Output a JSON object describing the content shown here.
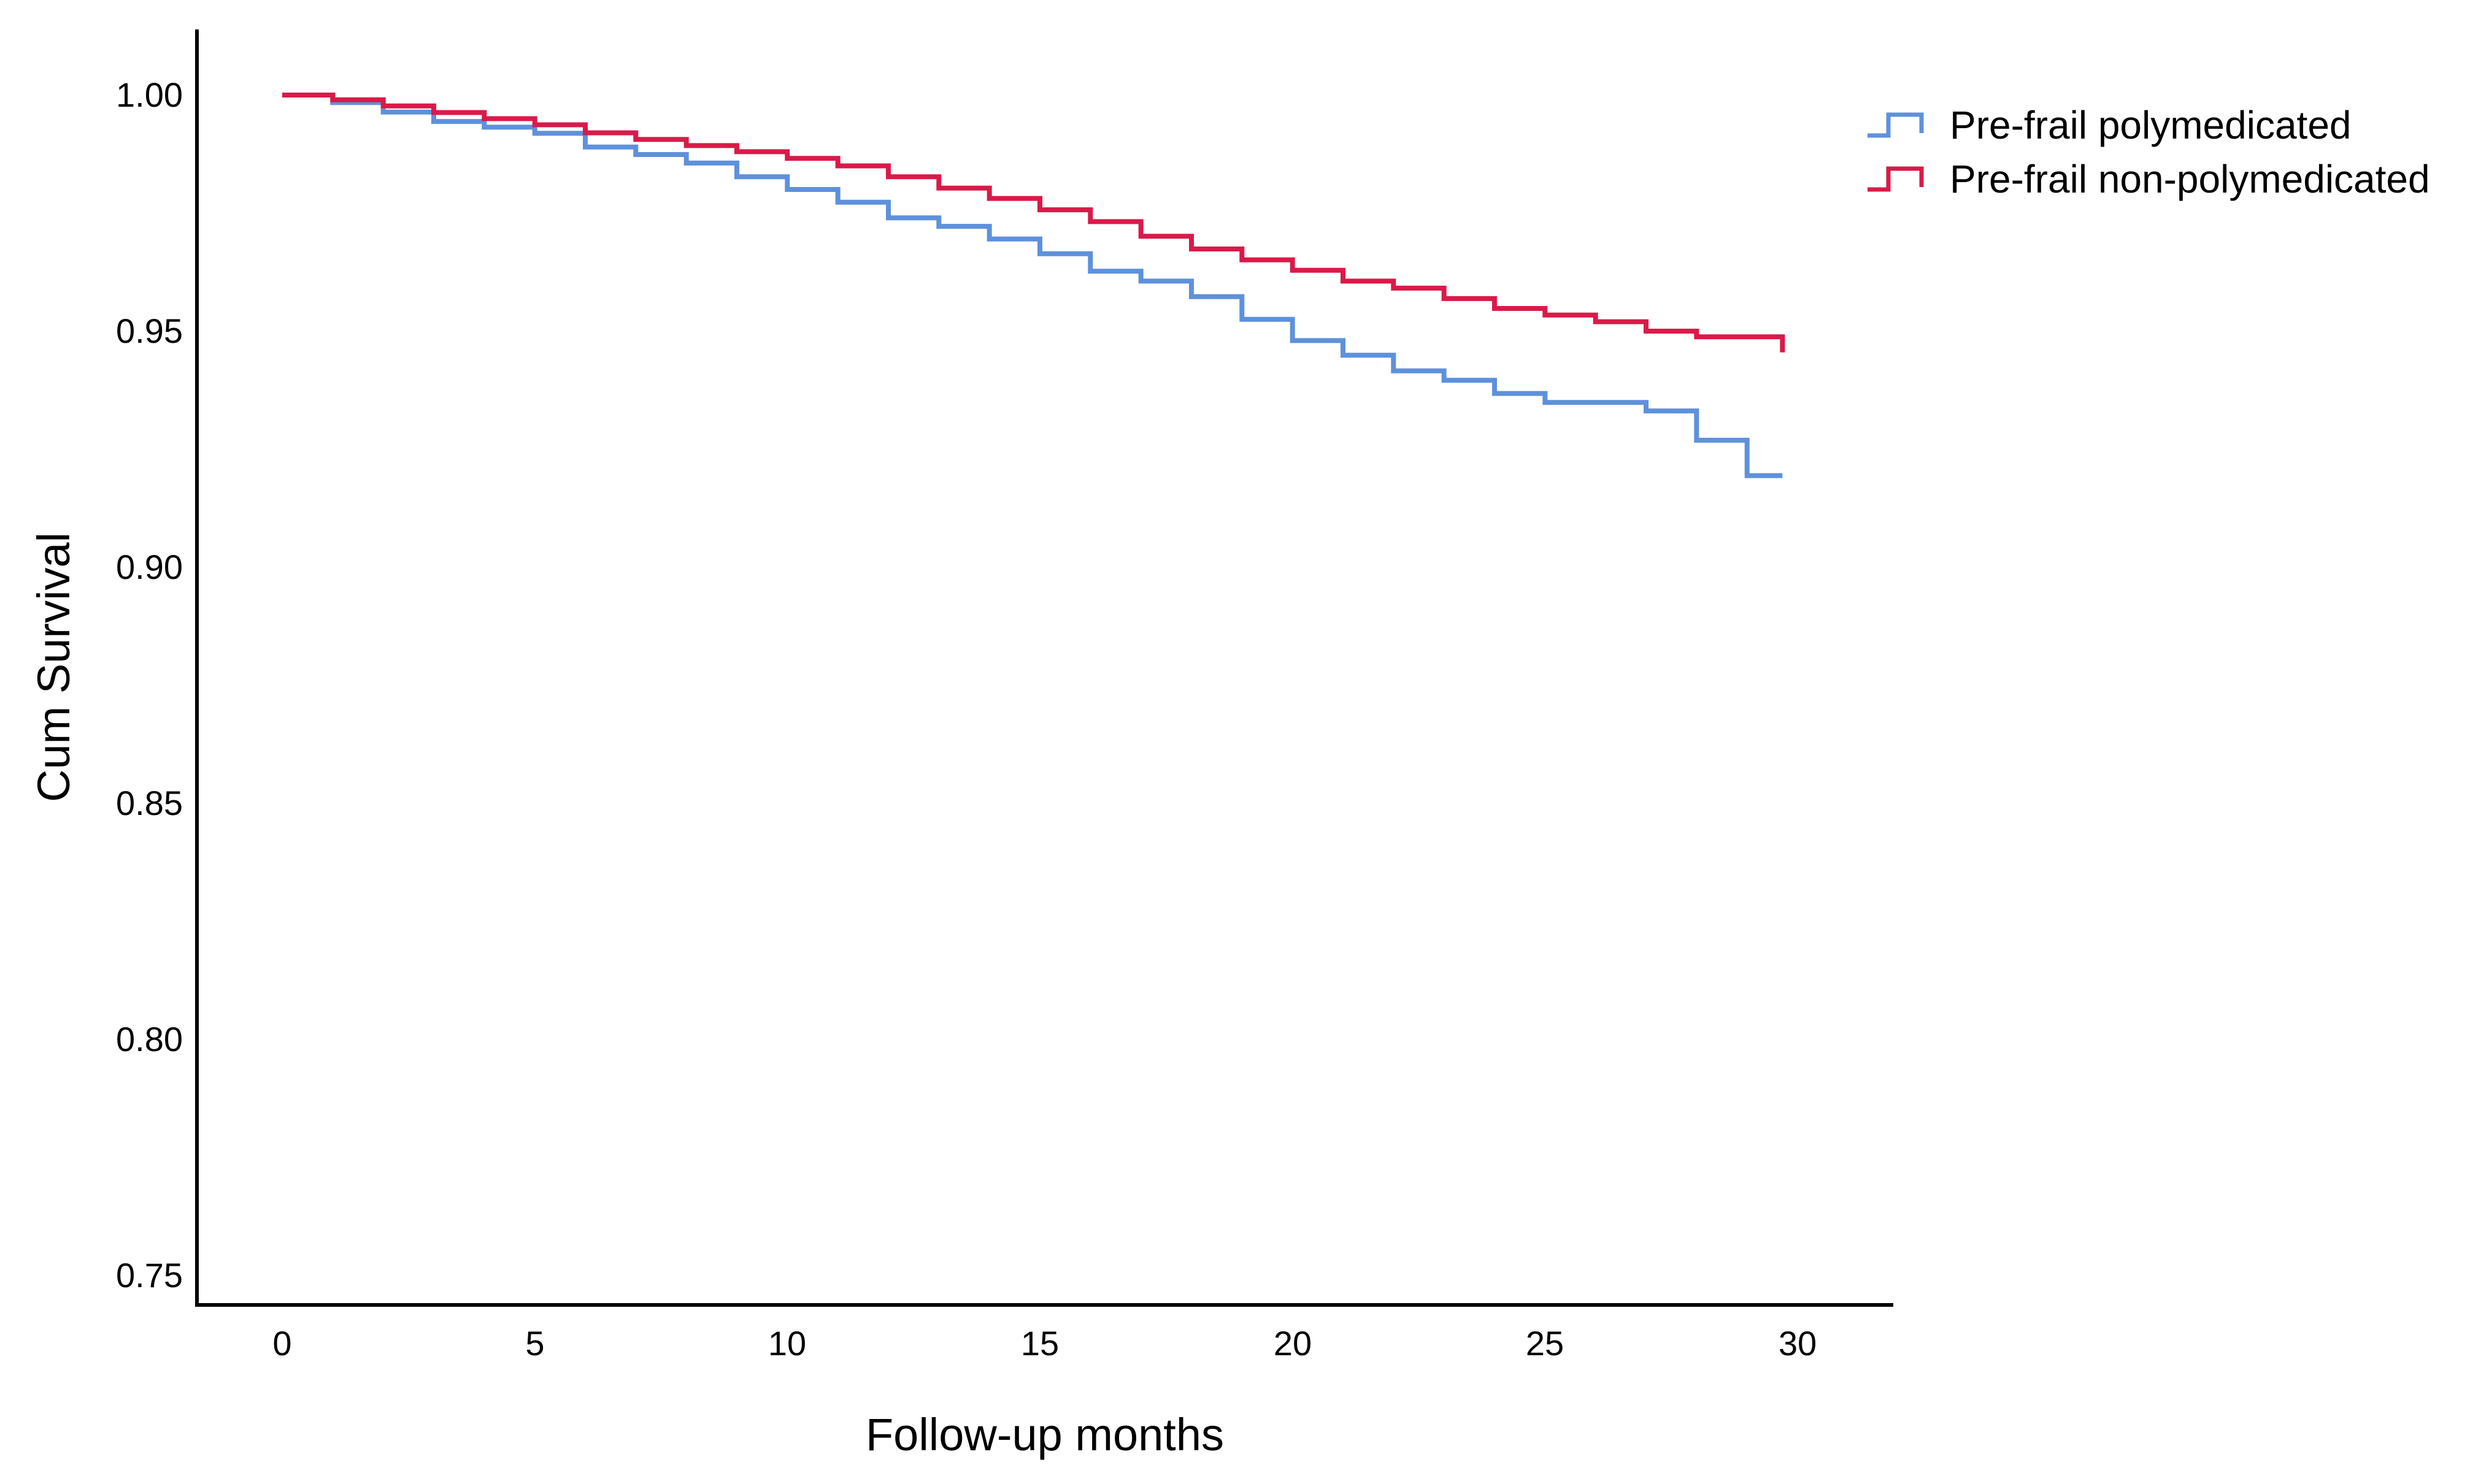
{
  "figure": {
    "background_color": "#ffffff",
    "axis_color": "#000000",
    "text_color": "#000000"
  },
  "chart_data": {
    "type": "line",
    "subtype": "kaplan-meier-step-survival",
    "title": "",
    "xlabel": "Follow-up months",
    "ylabel": "Cum Survival",
    "xlim": [
      0,
      30
    ],
    "ylim": [
      0.75,
      1.0
    ],
    "grid": false,
    "legend_position": "outside-top-right",
    "x_ticks": [
      0,
      5,
      10,
      15,
      20,
      25,
      30
    ],
    "x_tick_labels": [
      "0",
      "5",
      "10",
      "15",
      "20",
      "25",
      "30"
    ],
    "y_ticks": [
      1.0,
      0.95,
      0.9,
      0.85,
      0.8,
      0.75
    ],
    "y_tick_labels": [
      "1.00",
      "0.95",
      "0.90",
      "0.85",
      "0.80",
      "0.75"
    ],
    "series": [
      {
        "id": "prefrail-polymedicated",
        "name": "Pre-frail polymedicated",
        "color": "#5E91DC",
        "points": [
          [
            0,
            1.0
          ],
          [
            1,
            0.9984
          ],
          [
            2,
            0.9964
          ],
          [
            3,
            0.9944
          ],
          [
            4,
            0.9932
          ],
          [
            5,
            0.9919
          ],
          [
            6,
            0.989
          ],
          [
            7,
            0.9874
          ],
          [
            8,
            0.9856
          ],
          [
            9,
            0.9827
          ],
          [
            10,
            0.98
          ],
          [
            11,
            0.9773
          ],
          [
            12,
            0.974
          ],
          [
            13,
            0.9722
          ],
          [
            14,
            0.9695
          ],
          [
            15,
            0.9664
          ],
          [
            16,
            0.9627
          ],
          [
            17,
            0.9606
          ],
          [
            18,
            0.9573
          ],
          [
            19,
            0.9525
          ],
          [
            20,
            0.948
          ],
          [
            21,
            0.9449
          ],
          [
            22,
            0.9416
          ],
          [
            23,
            0.9396
          ],
          [
            24,
            0.9368
          ],
          [
            25,
            0.9349
          ],
          [
            27,
            0.9331
          ],
          [
            28,
            0.9269
          ],
          [
            29,
            0.9194
          ],
          [
            29.7,
            0.9194
          ]
        ]
      },
      {
        "id": "prefrail-non-polymedicated",
        "name": "Pre-frail non-polymedicated",
        "color": "#DA1A49",
        "points": [
          [
            0,
            1.0
          ],
          [
            1,
            0.999
          ],
          [
            2,
            0.9977
          ],
          [
            3,
            0.9963
          ],
          [
            4,
            0.995
          ],
          [
            5,
            0.9937
          ],
          [
            6,
            0.992
          ],
          [
            7,
            0.9906
          ],
          [
            8,
            0.9893
          ],
          [
            9,
            0.988
          ],
          [
            10,
            0.9866
          ],
          [
            11,
            0.985
          ],
          [
            12,
            0.9827
          ],
          [
            13,
            0.9803
          ],
          [
            14,
            0.9781
          ],
          [
            15,
            0.9757
          ],
          [
            16,
            0.9732
          ],
          [
            17,
            0.9701
          ],
          [
            18,
            0.9674
          ],
          [
            19,
            0.9651
          ],
          [
            20,
            0.9629
          ],
          [
            21,
            0.9606
          ],
          [
            22,
            0.9591
          ],
          [
            23,
            0.9569
          ],
          [
            24,
            0.9548
          ],
          [
            25,
            0.9534
          ],
          [
            26,
            0.952
          ],
          [
            27,
            0.95
          ],
          [
            28,
            0.9488
          ],
          [
            29.7,
            0.9455
          ]
        ]
      }
    ]
  }
}
